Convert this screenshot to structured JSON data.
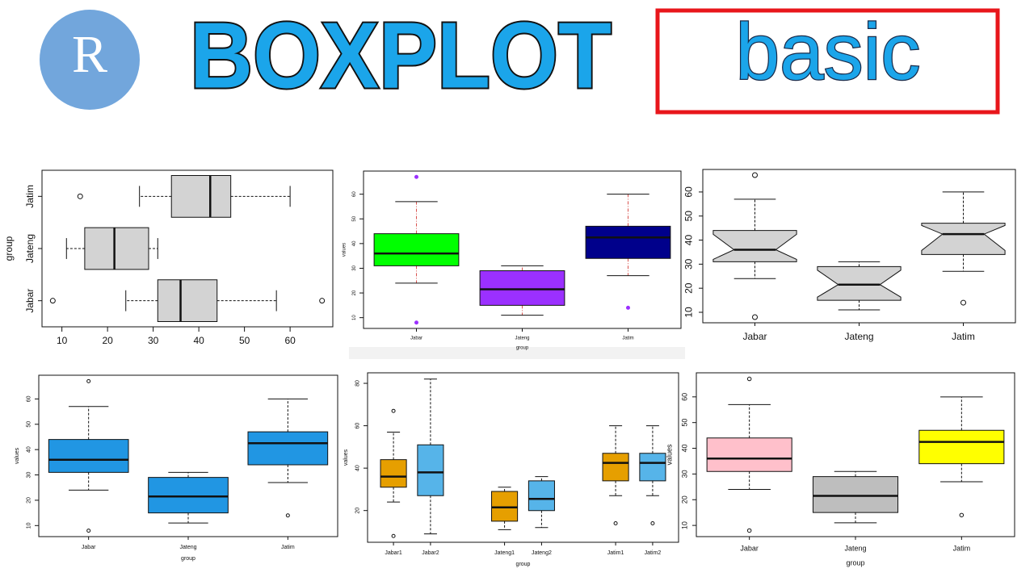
{
  "header": {
    "logo": "R",
    "title": "BOXPLOT",
    "tag": "basic"
  },
  "chart_data": [
    {
      "type": "boxplot",
      "horizontal": true,
      "ylabel": "group",
      "categories": [
        "Jabar",
        "Jateng",
        "Jatim"
      ],
      "stats": [
        {
          "whislo": 24,
          "q1": 31,
          "med": 36,
          "q3": 44,
          "whishi": 57,
          "fliers": [
            8,
            67
          ]
        },
        {
          "whislo": 11,
          "q1": 15,
          "med": 21.5,
          "q3": 29,
          "whishi": 31,
          "fliers": []
        },
        {
          "whislo": 27,
          "q1": 34,
          "med": 42.5,
          "q3": 47,
          "whishi": 60,
          "fliers": [
            14
          ]
        }
      ],
      "colors": [
        "#d3d3d3",
        "#d3d3d3",
        "#d3d3d3"
      ],
      "xlim": [
        5.64,
        69.36
      ],
      "xticks": [
        10,
        20,
        30,
        40,
        50,
        60
      ]
    },
    {
      "type": "boxplot",
      "xlabel": "group",
      "ylabel": "values",
      "categories": [
        "Jabar",
        "Jateng",
        "Jatim"
      ],
      "stats": [
        {
          "whislo": 24,
          "q1": 31,
          "med": 36,
          "q3": 44,
          "whishi": 57,
          "fliers": [
            8,
            67
          ]
        },
        {
          "whislo": 11,
          "q1": 15,
          "med": 21.5,
          "q3": 29,
          "whishi": 31,
          "fliers": []
        },
        {
          "whislo": 27,
          "q1": 34,
          "med": 42.5,
          "q3": 47,
          "whishi": 60,
          "fliers": [
            14
          ]
        }
      ],
      "colors": [
        "#00ff00",
        "#9b30ff",
        "#00008b"
      ],
      "whisker_color": "#d9534f",
      "flier_color": "#9b30ff",
      "ylim": [
        5.64,
        69.36
      ],
      "yticks": [
        10,
        20,
        30,
        40,
        50,
        60
      ]
    },
    {
      "type": "boxplot",
      "notch": true,
      "categories": [
        "Jabar",
        "Jateng",
        "Jatim"
      ],
      "stats": [
        {
          "whislo": 24,
          "q1": 31,
          "med": 36,
          "q3": 44,
          "whishi": 57,
          "fliers": [
            8,
            67
          ]
        },
        {
          "whislo": 11,
          "q1": 15,
          "med": 21.5,
          "q3": 29,
          "whishi": 31,
          "fliers": []
        },
        {
          "whislo": 27,
          "q1": 34,
          "med": 42.5,
          "q3": 47,
          "whishi": 60,
          "fliers": [
            14
          ]
        }
      ],
      "colors": [
        "#d3d3d3",
        "#d3d3d3",
        "#d3d3d3"
      ],
      "ylim": [
        5.64,
        69.36
      ],
      "yticks": [
        10,
        20,
        30,
        40,
        50,
        60
      ]
    },
    {
      "type": "boxplot",
      "xlabel": "group",
      "ylabel": "values",
      "categories": [
        "Jabar",
        "Jateng",
        "Jatim"
      ],
      "stats": [
        {
          "whislo": 24,
          "q1": 31,
          "med": 36,
          "q3": 44,
          "whishi": 57,
          "fliers": [
            8,
            67
          ]
        },
        {
          "whislo": 11,
          "q1": 15,
          "med": 21.5,
          "q3": 29,
          "whishi": 31,
          "fliers": []
        },
        {
          "whislo": 27,
          "q1": 34,
          "med": 42.5,
          "q3": 47,
          "whishi": 60,
          "fliers": [
            14
          ]
        }
      ],
      "colors": [
        "#2196e3",
        "#2196e3",
        "#2196e3"
      ],
      "ylim": [
        5.64,
        69.36
      ],
      "yticks": [
        10,
        20,
        30,
        40,
        50,
        60
      ]
    },
    {
      "type": "boxplot",
      "xlabel": "group",
      "ylabel": "values",
      "categories": [
        "Jabar1",
        "Jabar2",
        "Jateng1",
        "Jateng2",
        "Jatim1",
        "Jatim2"
      ],
      "stats": [
        {
          "whislo": 24,
          "q1": 31,
          "med": 36,
          "q3": 44,
          "whishi": 57,
          "fliers": [
            8,
            67
          ]
        },
        {
          "whislo": 9,
          "q1": 27,
          "med": 38,
          "q3": 51,
          "whishi": 82,
          "fliers": []
        },
        {
          "whislo": 11,
          "q1": 15,
          "med": 21.5,
          "q3": 29,
          "whishi": 31,
          "fliers": []
        },
        {
          "whislo": 12,
          "q1": 20,
          "med": 25.5,
          "q3": 34,
          "whishi": 36,
          "fliers": []
        },
        {
          "whislo": 27,
          "q1": 34,
          "med": 42.5,
          "q3": 47,
          "whishi": 60,
          "fliers": [
            14
          ]
        },
        {
          "whislo": 27,
          "q1": 34,
          "med": 42.5,
          "q3": 47,
          "whishi": 60,
          "fliers": [
            14
          ]
        }
      ],
      "colors": [
        "#e69f00",
        "#56b4e9",
        "#e69f00",
        "#56b4e9",
        "#e69f00",
        "#56b4e9"
      ],
      "ylim": [
        5.04,
        84.96
      ],
      "yticks": [
        20,
        40,
        60,
        80
      ]
    },
    {
      "type": "boxplot",
      "xlabel": "group",
      "ylabel": "values",
      "categories": [
        "Jabar",
        "Jateng",
        "Jatim"
      ],
      "stats": [
        {
          "whislo": 24,
          "q1": 31,
          "med": 36,
          "q3": 44,
          "whishi": 57,
          "fliers": [
            8,
            67
          ]
        },
        {
          "whislo": 11,
          "q1": 15,
          "med": 21.5,
          "q3": 29,
          "whishi": 31,
          "fliers": []
        },
        {
          "whislo": 27,
          "q1": 34,
          "med": 42.5,
          "q3": 47,
          "whishi": 60,
          "fliers": [
            14
          ]
        }
      ],
      "colors": [
        "#ffc0cb",
        "#bebebe",
        "#ffff00"
      ],
      "ylim": [
        5.64,
        69.36
      ],
      "yticks": [
        10,
        20,
        30,
        40,
        50,
        60
      ]
    }
  ]
}
